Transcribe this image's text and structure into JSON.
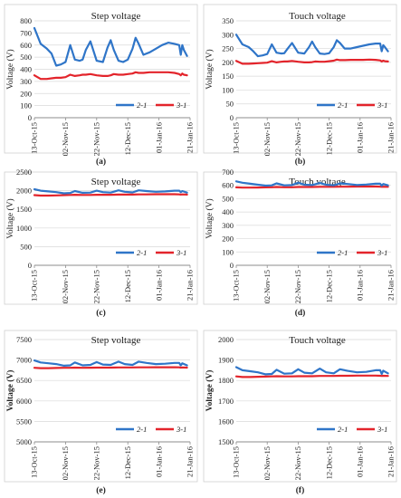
{
  "colors": {
    "series_1": "#2f75c8",
    "series_2": "#e3242b",
    "grid": "#d9d9d9",
    "axis": "#8c8c8c",
    "text": "#222222"
  },
  "chart_data": [
    {
      "type": "line",
      "label": "(a)",
      "title": "Step voltage",
      "ylabel": "Voltage (V)",
      "xlabel": "",
      "ylim": [
        0,
        800
      ],
      "yticks": [
        0,
        100,
        200,
        300,
        400,
        500,
        600,
        700,
        800
      ],
      "xlim": [
        "2015-10-13",
        "2016-01-21"
      ],
      "x_tick_labels": [
        "13-Oct-15",
        "02-Nov-15",
        "22-Nov-15",
        "12-Dec-15",
        "01-Jan-16",
        "21-Jan-16"
      ],
      "legend": "bottom-right",
      "grid": "horizontal",
      "x": [
        "2015-10-13",
        "2015-10-17",
        "2015-10-21",
        "2015-10-24",
        "2015-10-27",
        "2015-10-30",
        "2015-11-02",
        "2015-11-05",
        "2015-11-08",
        "2015-11-11",
        "2015-11-13",
        "2015-11-15",
        "2015-11-18",
        "2015-11-22",
        "2015-11-26",
        "2015-11-29",
        "2015-12-01",
        "2015-12-03",
        "2015-12-06",
        "2015-12-09",
        "2015-12-12",
        "2015-12-15",
        "2015-12-17",
        "2015-12-19",
        "2015-12-22",
        "2015-12-26",
        "2015-12-30",
        "2016-01-03",
        "2016-01-07",
        "2016-01-11",
        "2016-01-14",
        "2016-01-15",
        "2016-01-16",
        "2016-01-17",
        "2016-01-19"
      ],
      "series": [
        {
          "name": "2-1",
          "values": [
            740,
            610,
            570,
            530,
            430,
            440,
            460,
            600,
            480,
            470,
            480,
            560,
            630,
            470,
            460,
            580,
            640,
            560,
            470,
            460,
            480,
            570,
            660,
            610,
            520,
            540,
            570,
            600,
            620,
            610,
            600,
            520,
            600,
            560,
            510
          ]
        },
        {
          "name": "3-1",
          "values": [
            350,
            320,
            320,
            325,
            330,
            330,
            335,
            355,
            345,
            350,
            355,
            355,
            360,
            350,
            345,
            345,
            350,
            360,
            355,
            355,
            360,
            365,
            375,
            370,
            370,
            375,
            375,
            375,
            375,
            370,
            360,
            350,
            365,
            355,
            350
          ]
        }
      ]
    },
    {
      "type": "line",
      "label": "(b)",
      "title": "Touch voltage",
      "ylabel": "Voltage (V)",
      "xlabel": "",
      "ylim": [
        0,
        350
      ],
      "yticks": [
        0,
        50,
        100,
        150,
        200,
        250,
        300,
        350
      ],
      "xlim": [
        "2015-10-13",
        "2016-01-21"
      ],
      "x_tick_labels": [
        "13-Oct-15",
        "02-Nov-15",
        "22-Nov-15",
        "12-Dec-15",
        "01-Jan-16",
        "21-Jan-16"
      ],
      "legend": "bottom-right",
      "grid": "horizontal",
      "x": [
        "2015-10-13",
        "2015-10-17",
        "2015-10-21",
        "2015-10-24",
        "2015-10-27",
        "2015-10-30",
        "2015-11-02",
        "2015-11-05",
        "2015-11-08",
        "2015-11-11",
        "2015-11-13",
        "2015-11-15",
        "2015-11-18",
        "2015-11-22",
        "2015-11-26",
        "2015-11-29",
        "2015-12-01",
        "2015-12-03",
        "2015-12-06",
        "2015-12-09",
        "2015-12-12",
        "2015-12-15",
        "2015-12-17",
        "2015-12-19",
        "2015-12-22",
        "2015-12-26",
        "2015-12-30",
        "2016-01-03",
        "2016-01-07",
        "2016-01-11",
        "2016-01-14",
        "2016-01-15",
        "2016-01-16",
        "2016-01-17",
        "2016-01-19"
      ],
      "series": [
        {
          "name": "2-1",
          "values": [
            300,
            265,
            255,
            240,
            222,
            225,
            230,
            265,
            235,
            232,
            233,
            248,
            270,
            235,
            232,
            255,
            275,
            255,
            232,
            230,
            233,
            255,
            280,
            270,
            250,
            250,
            255,
            260,
            265,
            268,
            268,
            240,
            262,
            255,
            240
          ]
        },
        {
          "name": "3-1",
          "values": [
            205,
            195,
            195,
            196,
            197,
            198,
            199,
            204,
            200,
            202,
            203,
            203,
            205,
            202,
            200,
            200,
            201,
            203,
            202,
            202,
            204,
            206,
            210,
            208,
            208,
            209,
            209,
            209,
            210,
            209,
            207,
            203,
            206,
            204,
            203
          ]
        }
      ]
    },
    {
      "type": "line",
      "label": "(c)",
      "title": "Step voltage",
      "ylabel": "Voltage (V)",
      "xlabel": "",
      "ylim": [
        0,
        2500
      ],
      "yticks": [
        0,
        500,
        1000,
        1500,
        2000,
        2500
      ],
      "xlim": [
        "2015-10-13",
        "2016-01-21"
      ],
      "x_tick_labels": [
        "13-Oct-15",
        "02-Nov-15",
        "22-Nov-15",
        "12-Dec-15",
        "01-Jan-16",
        "21-Jan-16"
      ],
      "legend": "bottom-right",
      "grid": "horizontal",
      "x": [
        "2015-10-13",
        "2015-10-17",
        "2015-10-22",
        "2015-10-27",
        "2015-11-01",
        "2015-11-05",
        "2015-11-08",
        "2015-11-13",
        "2015-11-18",
        "2015-11-22",
        "2015-11-26",
        "2015-12-01",
        "2015-12-06",
        "2015-12-10",
        "2015-12-15",
        "2015-12-19",
        "2015-12-24",
        "2015-12-30",
        "2016-01-05",
        "2016-01-11",
        "2016-01-14",
        "2016-01-15",
        "2016-01-16",
        "2016-01-19"
      ],
      "series": [
        {
          "name": "2-1",
          "values": [
            2040,
            2000,
            1980,
            1960,
            1930,
            1940,
            1990,
            1945,
            1950,
            2000,
            1960,
            1950,
            2010,
            1970,
            1955,
            2010,
            1990,
            1970,
            1980,
            2000,
            2000,
            1960,
            1990,
            1950
          ]
        },
        {
          "name": "3-1",
          "values": [
            1880,
            1870,
            1870,
            1875,
            1880,
            1885,
            1890,
            1885,
            1885,
            1890,
            1890,
            1890,
            1895,
            1895,
            1895,
            1900,
            1900,
            1905,
            1905,
            1905,
            1900,
            1895,
            1900,
            1895
          ]
        }
      ]
    },
    {
      "type": "line",
      "label": "(d)",
      "title": "Touch voltage",
      "ylabel": "Voltage (V)",
      "xlabel": "",
      "ylim": [
        0,
        700
      ],
      "yticks": [
        0,
        100,
        200,
        300,
        400,
        500,
        600,
        700
      ],
      "xlim": [
        "2015-10-13",
        "2016-01-21"
      ],
      "x_tick_labels": [
        "13-Oct-15",
        "02-Nov-15",
        "22-Nov-15",
        "12-Dec-15",
        "01-Jan-16",
        "21-Jan-16"
      ],
      "legend": "bottom-right",
      "grid": "horizontal",
      "x": [
        "2015-10-13",
        "2015-10-17",
        "2015-10-22",
        "2015-10-27",
        "2015-11-01",
        "2015-11-05",
        "2015-11-08",
        "2015-11-13",
        "2015-11-18",
        "2015-11-22",
        "2015-11-26",
        "2015-12-01",
        "2015-12-06",
        "2015-12-10",
        "2015-12-15",
        "2015-12-19",
        "2015-12-24",
        "2015-12-30",
        "2016-01-05",
        "2016-01-11",
        "2016-01-14",
        "2016-01-15",
        "2016-01-16",
        "2016-01-19"
      ],
      "series": [
        {
          "name": "2-1",
          "values": [
            630,
            620,
            612,
            605,
            598,
            600,
            615,
            600,
            602,
            620,
            605,
            602,
            618,
            605,
            600,
            615,
            610,
            603,
            606,
            612,
            612,
            598,
            610,
            600
          ]
        },
        {
          "name": "3-1",
          "values": [
            585,
            583,
            583,
            584,
            585,
            586,
            588,
            586,
            586,
            588,
            588,
            588,
            589,
            589,
            589,
            590,
            590,
            591,
            591,
            591,
            590,
            589,
            590,
            589
          ]
        }
      ]
    },
    {
      "type": "line",
      "label": "(e)",
      "title": "Step voltage",
      "ylabel": "Voltage (V)",
      "xlabel": "",
      "ylim": [
        5000,
        7500
      ],
      "yticks": [
        5000,
        5500,
        6000,
        6500,
        7000,
        7500
      ],
      "xlim": [
        "2015-10-13",
        "2016-01-21"
      ],
      "x_tick_labels": [
        "13-Oct-15",
        "02-Nov-15",
        "22-Nov-15",
        "12-Dec-15",
        "01-Jan-16",
        "21-Jan-16"
      ],
      "legend": "bottom-right",
      "grid": "horizontal",
      "x": [
        "2015-10-13",
        "2015-10-17",
        "2015-10-22",
        "2015-10-27",
        "2015-11-01",
        "2015-11-05",
        "2015-11-08",
        "2015-11-13",
        "2015-11-18",
        "2015-11-22",
        "2015-11-26",
        "2015-12-01",
        "2015-12-06",
        "2015-12-10",
        "2015-12-15",
        "2015-12-19",
        "2015-12-24",
        "2015-12-30",
        "2016-01-05",
        "2016-01-11",
        "2016-01-14",
        "2016-01-15",
        "2016-01-16",
        "2016-01-19"
      ],
      "series": [
        {
          "name": "2-1",
          "values": [
            6990,
            6940,
            6920,
            6900,
            6860,
            6870,
            6940,
            6870,
            6880,
            6950,
            6890,
            6880,
            6960,
            6900,
            6880,
            6960,
            6930,
            6900,
            6910,
            6930,
            6930,
            6870,
            6920,
            6870
          ]
        },
        {
          "name": "3-1",
          "values": [
            6810,
            6800,
            6800,
            6805,
            6810,
            6810,
            6815,
            6810,
            6812,
            6815,
            6815,
            6815,
            6818,
            6818,
            6818,
            6820,
            6820,
            6822,
            6822,
            6822,
            6820,
            6815,
            6818,
            6815
          ]
        }
      ]
    },
    {
      "type": "line",
      "label": "(f)",
      "title": "Touch voltage",
      "ylabel": "Voltage (V)",
      "xlabel": "",
      "ylim": [
        1500,
        2000
      ],
      "yticks": [
        1500,
        1600,
        1700,
        1800,
        1900,
        2000
      ],
      "xlim": [
        "2015-10-13",
        "2016-01-21"
      ],
      "x_tick_labels": [
        "13-Oct-15",
        "02-Nov-15",
        "22-Nov-15",
        "12-Dec-15",
        "01-Jan-16",
        "21-Jan-16"
      ],
      "legend": "bottom-right",
      "grid": "horizontal",
      "x": [
        "2015-10-13",
        "2015-10-17",
        "2015-10-22",
        "2015-10-27",
        "2015-11-01",
        "2015-11-05",
        "2015-11-08",
        "2015-11-13",
        "2015-11-18",
        "2015-11-22",
        "2015-11-26",
        "2015-12-01",
        "2015-12-06",
        "2015-12-10",
        "2015-12-15",
        "2015-12-19",
        "2015-12-24",
        "2015-12-30",
        "2016-01-05",
        "2016-01-11",
        "2016-01-14",
        "2016-01-15",
        "2016-01-16",
        "2016-01-19"
      ],
      "series": [
        {
          "name": "2-1",
          "values": [
            1865,
            1850,
            1845,
            1840,
            1830,
            1832,
            1852,
            1833,
            1835,
            1855,
            1838,
            1835,
            1858,
            1840,
            1835,
            1855,
            1847,
            1840,
            1842,
            1850,
            1850,
            1832,
            1848,
            1835
          ]
        },
        {
          "name": "3-1",
          "values": [
            1820,
            1817,
            1817,
            1818,
            1819,
            1820,
            1821,
            1820,
            1820,
            1821,
            1821,
            1821,
            1822,
            1822,
            1822,
            1823,
            1823,
            1824,
            1824,
            1824,
            1823,
            1822,
            1823,
            1822
          ]
        }
      ]
    }
  ]
}
